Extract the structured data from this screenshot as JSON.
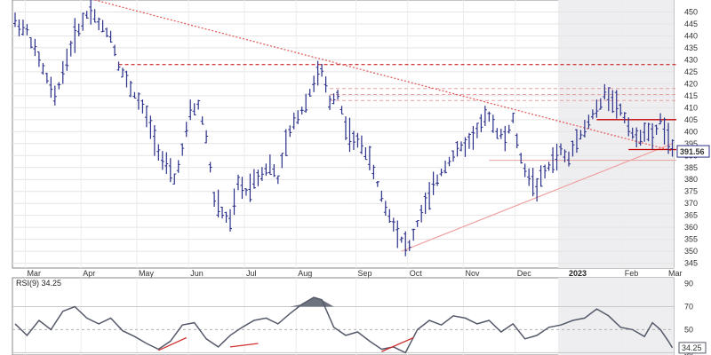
{
  "chart_data": [
    {
      "type": "bar",
      "subtype": "ohlc",
      "x_axis": {
        "months": [
          "Mar",
          "Apr",
          "May",
          "Jun",
          "Jul",
          "Aug",
          "Sep",
          "Oct",
          "Nov",
          "Dec",
          "2023",
          "Feb",
          "Mar"
        ],
        "year_marker": "2023"
      },
      "y_axis": {
        "side": "right",
        "ticks": [
          345,
          350,
          355,
          360,
          365,
          370,
          375,
          380,
          385,
          390,
          395,
          400,
          405,
          410,
          415,
          420,
          425,
          430,
          435,
          440,
          445,
          450
        ],
        "ylim": [
          343,
          455
        ]
      },
      "last_price": {
        "value": 391.56,
        "label": "391.56",
        "color": "#2a2f8a"
      },
      "price_path": [
        [
          0,
          446
        ],
        [
          3,
          442
        ],
        [
          7,
          426
        ],
        [
          10,
          414
        ],
        [
          12,
          425
        ],
        [
          15,
          440
        ],
        [
          19,
          452
        ],
        [
          21,
          445
        ],
        [
          24,
          440
        ],
        [
          26,
          428
        ],
        [
          29,
          418
        ],
        [
          32,
          410
        ],
        [
          34,
          402
        ],
        [
          37,
          388
        ],
        [
          40,
          380
        ],
        [
          42,
          392
        ],
        [
          44,
          408
        ],
        [
          46,
          411
        ],
        [
          48,
          398
        ],
        [
          50,
          372
        ],
        [
          52,
          366
        ],
        [
          54,
          362
        ],
        [
          56,
          378
        ],
        [
          58,
          375
        ],
        [
          60,
          380
        ],
        [
          62,
          383
        ],
        [
          64,
          386
        ],
        [
          66,
          380
        ],
        [
          68,
          395
        ],
        [
          70,
          404
        ],
        [
          72,
          409
        ],
        [
          74,
          416
        ],
        [
          75.5,
          423
        ],
        [
          77,
          425
        ],
        [
          79,
          412
        ],
        [
          81,
          416
        ],
        [
          83,
          402
        ],
        [
          85,
          396
        ],
        [
          87,
          395
        ],
        [
          89,
          388
        ],
        [
          91,
          378
        ],
        [
          93,
          368
        ],
        [
          95,
          362
        ],
        [
          97,
          355
        ],
        [
          99,
          352
        ],
        [
          100,
          357
        ],
        [
          102,
          366
        ],
        [
          104,
          373
        ],
        [
          106,
          380
        ],
        [
          108,
          386
        ],
        [
          111,
          392
        ],
        [
          114,
          396
        ],
        [
          117,
          403
        ],
        [
          119,
          407
        ],
        [
          121,
          400
        ],
        [
          123,
          397
        ],
        [
          125,
          405
        ],
        [
          127,
          388
        ],
        [
          129,
          381
        ],
        [
          131,
          377
        ],
        [
          133,
          383
        ],
        [
          135,
          388
        ],
        [
          137,
          392
        ],
        [
          139,
          388
        ],
        [
          141,
          398
        ],
        [
          143,
          401
        ],
        [
          145,
          407
        ],
        [
          147,
          411
        ],
        [
          148,
          416
        ],
        [
          150,
          414
        ],
        [
          152,
          409
        ],
        [
          154,
          403
        ],
        [
          156,
          396
        ],
        [
          158,
          401
        ],
        [
          160,
          397
        ],
        [
          162,
          405
        ],
        [
          164,
          397
        ],
        [
          165,
          391.56
        ]
      ],
      "annotations": {
        "resistance_line": {
          "value": 428,
          "style": "dashed",
          "color": "#c00000"
        },
        "pink_levels": [
          {
            "value": 418,
            "style": "dashed",
            "color": "#e8a0a0"
          },
          {
            "value": 415.5,
            "style": "dashed",
            "color": "#e8a0a0"
          },
          {
            "value": 413,
            "style": "dashed",
            "color": "#e8a0a0"
          }
        ],
        "downtrend_line": {
          "from": [
            20,
            455
          ],
          "to": [
            165,
            392
          ],
          "style": "dotted",
          "color": "#e06060"
        },
        "uptrend_line": {
          "from": [
            97,
            350
          ],
          "to": [
            165,
            395
          ],
          "style": "solid",
          "color": "#f0a0a0"
        },
        "recent_levels": [
          {
            "x_from": 146,
            "x_to": 166,
            "value": 405,
            "color": "#c00000"
          },
          {
            "x_from": 154,
            "x_to": 166,
            "value": 392.5,
            "color": "#c00000"
          }
        ],
        "support_box": {
          "x_from": 119,
          "x_to": 166,
          "value": 388,
          "color": "#e8a0a0"
        }
      }
    },
    {
      "type": "line",
      "title": "RSI(9) 34.25",
      "last_value": {
        "value": 34.25,
        "label": "34.25"
      },
      "y_axis": {
        "side": "right",
        "ticks": [
          90,
          70,
          50,
          30
        ],
        "ylim": [
          28,
          95
        ],
        "reference_lines": [
          70,
          50,
          30
        ]
      },
      "rsi_path": [
        [
          0,
          55
        ],
        [
          3,
          45
        ],
        [
          6,
          58
        ],
        [
          9,
          50
        ],
        [
          12,
          66
        ],
        [
          15,
          70
        ],
        [
          18,
          60
        ],
        [
          21,
          55
        ],
        [
          24,
          60
        ],
        [
          27,
          49
        ],
        [
          30,
          44
        ],
        [
          33,
          38
        ],
        [
          36,
          33
        ],
        [
          39,
          40
        ],
        [
          42,
          54
        ],
        [
          45,
          56
        ],
        [
          48,
          42
        ],
        [
          51,
          35
        ],
        [
          54,
          45
        ],
        [
          57,
          52
        ],
        [
          60,
          58
        ],
        [
          63,
          60
        ],
        [
          66,
          55
        ],
        [
          69,
          64
        ],
        [
          72,
          72
        ],
        [
          75,
          78
        ],
        [
          77,
          76
        ],
        [
          80,
          52
        ],
        [
          83,
          45
        ],
        [
          86,
          48
        ],
        [
          89,
          40
        ],
        [
          92,
          33
        ],
        [
          95,
          35
        ],
        [
          98,
          30
        ],
        [
          101,
          50
        ],
        [
          104,
          58
        ],
        [
          107,
          54
        ],
        [
          110,
          62
        ],
        [
          113,
          60
        ],
        [
          116,
          55
        ],
        [
          119,
          58
        ],
        [
          122,
          48
        ],
        [
          125,
          55
        ],
        [
          128,
          42
        ],
        [
          131,
          45
        ],
        [
          134,
          52
        ],
        [
          137,
          54
        ],
        [
          140,
          58
        ],
        [
          143,
          60
        ],
        [
          146,
          68
        ],
        [
          149,
          62
        ],
        [
          152,
          52
        ],
        [
          155,
          50
        ],
        [
          158,
          44
        ],
        [
          160,
          56
        ],
        [
          162,
          50
        ],
        [
          164,
          40
        ],
        [
          165,
          34.25
        ]
      ],
      "divergence_lines": [
        {
          "from": [
            36,
            32
          ],
          "to": [
            43,
            43
          ],
          "color": "#d03030"
        },
        {
          "from": [
            54,
            35
          ],
          "to": [
            61,
            38
          ],
          "color": "#d03030"
        },
        {
          "from": [
            92,
            31
          ],
          "to": [
            100,
            43
          ],
          "color": "#d03030"
        }
      ]
    }
  ]
}
